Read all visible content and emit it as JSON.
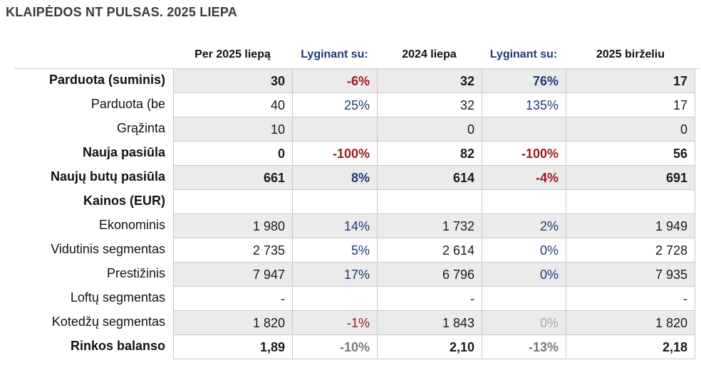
{
  "title": "KLAIPĖDOS NT PULSAS. 2025 LIEPA",
  "headers": [
    "Per 2025 liepą",
    "Lyginant su:",
    "2024 liepa",
    "Lyginant su:",
    "2025 birželiu"
  ],
  "rows": [
    {
      "label": "Parduota (suminis)",
      "bold": true,
      "values": [
        "30",
        "-6%",
        "32",
        "76%",
        "17"
      ]
    },
    {
      "label": "Parduota (be",
      "bold": false,
      "values": [
        "40",
        "25%",
        "32",
        "135%",
        "17"
      ]
    },
    {
      "label": "Grąžinta",
      "bold": false,
      "values": [
        "10",
        "",
        "0",
        "",
        "0"
      ]
    },
    {
      "label": "Nauja pasiūla",
      "bold": true,
      "values": [
        "0",
        "-100%",
        "82",
        "-100%",
        "56"
      ]
    },
    {
      "label": "Naujų butų pasiūla",
      "bold": true,
      "values": [
        "661",
        "8%",
        "614",
        "-4%",
        "691"
      ]
    },
    {
      "label": "Kainos (EUR)",
      "bold": true,
      "values": [
        "",
        "",
        "",
        "",
        ""
      ]
    },
    {
      "label": "Ekonominis",
      "bold": false,
      "values": [
        "1 980",
        "14%",
        "1 732",
        "2%",
        "1 949"
      ]
    },
    {
      "label": "Vidutinis segmentas",
      "bold": false,
      "values": [
        "2 735",
        "5%",
        "2 614",
        "0%",
        "2 728"
      ]
    },
    {
      "label": "Prestižinis",
      "bold": false,
      "values": [
        "7 947",
        "17%",
        "6 796",
        "0%",
        "7 935"
      ]
    },
    {
      "label": "Loftų segmentas",
      "bold": false,
      "values": [
        "-",
        "",
        "-",
        "",
        "-"
      ]
    },
    {
      "label": "Kotedžų segmentas",
      "bold": false,
      "values": [
        "1 820",
        "-1%",
        "1 843",
        "0%",
        "1 820"
      ]
    },
    {
      "label": "Rinkos balanso",
      "bold": true,
      "values": [
        "1,89",
        "-10%",
        "2,10",
        "-13%",
        "2,18"
      ]
    }
  ],
  "colors": {
    "negative": "#9c1a1f",
    "positive": "#1f3a73",
    "neutral": "#777777",
    "shade": "#ebebeb"
  }
}
